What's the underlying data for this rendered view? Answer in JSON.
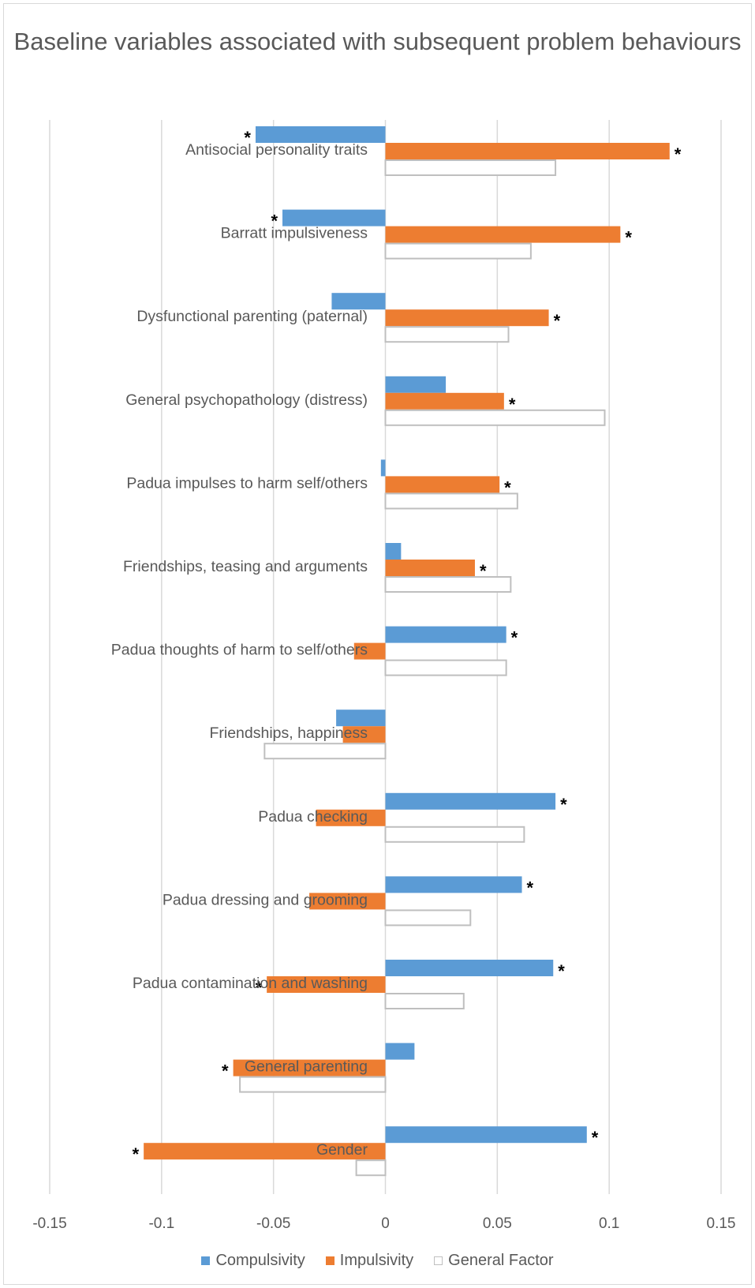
{
  "chart_data": {
    "type": "bar",
    "orientation": "horizontal",
    "title": "Baseline variables associated with subsequent problem behaviours",
    "xlabel": "",
    "ylabel": "",
    "xlim": [
      -0.15,
      0.15
    ],
    "xticks": [
      -0.15,
      -0.1,
      -0.05,
      0,
      0.05,
      0.1,
      0.15
    ],
    "xtick_labels": [
      "-0.15",
      "-0.1",
      "-0.05",
      "0",
      "0.05",
      "0.1",
      "0.15"
    ],
    "grid": "vertical",
    "legend_position": "bottom",
    "categories": [
      "Antisocial personality traits",
      "Barratt impulsiveness",
      "Dysfunctional parenting (paternal)",
      "General psychopathology (distress)",
      "Padua impulses to harm self/others",
      "Friendships, teasing and arguments",
      "Padua thoughts of harm to self/others",
      "Friendships, happiness",
      "Padua checking",
      "Padua dressing and grooming",
      "Padua contamination and washing",
      "General parenting",
      "Gender"
    ],
    "series": [
      {
        "name": "Compulsivity",
        "color": "#5b9bd5",
        "values": [
          -0.058,
          -0.046,
          -0.024,
          0.027,
          -0.002,
          0.007,
          0.054,
          -0.022,
          0.076,
          0.061,
          0.075,
          0.013,
          0.09
        ],
        "significant": [
          true,
          true,
          false,
          false,
          false,
          false,
          true,
          false,
          true,
          true,
          true,
          false,
          true
        ]
      },
      {
        "name": "Impulsivity",
        "color": "#ed7d31",
        "values": [
          0.127,
          0.105,
          0.073,
          0.053,
          0.051,
          0.04,
          -0.014,
          -0.019,
          -0.031,
          -0.034,
          -0.053,
          -0.068,
          -0.108
        ],
        "significant": [
          true,
          true,
          true,
          true,
          true,
          true,
          false,
          false,
          false,
          false,
          true,
          true,
          true
        ]
      },
      {
        "name": "General Factor",
        "color": "#ffffff",
        "border_color": "#bfbfbf",
        "values": [
          0.076,
          0.065,
          0.055,
          0.098,
          0.059,
          0.056,
          0.054,
          -0.054,
          0.062,
          0.038,
          0.035,
          -0.065,
          -0.013
        ],
        "significant": [
          false,
          false,
          false,
          false,
          false,
          false,
          false,
          false,
          false,
          false,
          false,
          false,
          false
        ]
      }
    ],
    "significance_marker": "*"
  }
}
